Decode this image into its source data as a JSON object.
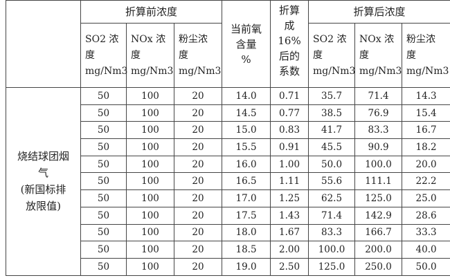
{
  "header": {
    "before_group": "折算前浓度",
    "oxygen": [
      "当前氧",
      "含量",
      "%"
    ],
    "coef": [
      "折算",
      "成",
      "16%",
      "后的",
      "系数"
    ],
    "after_group": "折算后浓度",
    "sub": [
      [
        "SO2 浓",
        "度",
        "mg/Nm3"
      ],
      [
        "NOx 浓",
        "度",
        "mg/Nm3"
      ],
      [
        "粉尘浓",
        "度",
        "mg/Nm3"
      ],
      [
        "SO2 浓",
        "度",
        "mg/Nm3"
      ],
      [
        "NOx 浓",
        "度",
        "mg/Nm3"
      ],
      [
        "粉尘浓",
        "度",
        "mg/Nm3"
      ]
    ]
  },
  "category": [
    "烧结球团烟",
    "气",
    "(新国标排",
    "放限值)"
  ],
  "rows": [
    [
      "50",
      "100",
      "20",
      "14.0",
      "0.71",
      "35.7",
      "71.4",
      "14.3"
    ],
    [
      "50",
      "100",
      "20",
      "14.5",
      "0.77",
      "38.5",
      "76.9",
      "15.4"
    ],
    [
      "50",
      "100",
      "20",
      "15.0",
      "0.83",
      "41.7",
      "83.3",
      "16.7"
    ],
    [
      "50",
      "100",
      "20",
      "15.5",
      "0.91",
      "45.5",
      "90.9",
      "18.2"
    ],
    [
      "50",
      "100",
      "20",
      "16.0",
      "1.00",
      "50.0",
      "100.0",
      "20.0"
    ],
    [
      "50",
      "100",
      "20",
      "16.5",
      "1.11",
      "55.6",
      "111.1",
      "22.2"
    ],
    [
      "50",
      "100",
      "20",
      "17.0",
      "1.25",
      "62.5",
      "125.0",
      "25.0"
    ],
    [
      "50",
      "100",
      "20",
      "17.5",
      "1.43",
      "71.4",
      "142.9",
      "28.6"
    ],
    [
      "50",
      "100",
      "20",
      "18.0",
      "1.67",
      "83.3",
      "166.7",
      "33.3"
    ],
    [
      "50",
      "100",
      "20",
      "18.5",
      "2.00",
      "100.0",
      "200.0",
      "40.0"
    ],
    [
      "50",
      "100",
      "20",
      "19.0",
      "2.50",
      "125.0",
      "250.0",
      "50.0"
    ]
  ]
}
